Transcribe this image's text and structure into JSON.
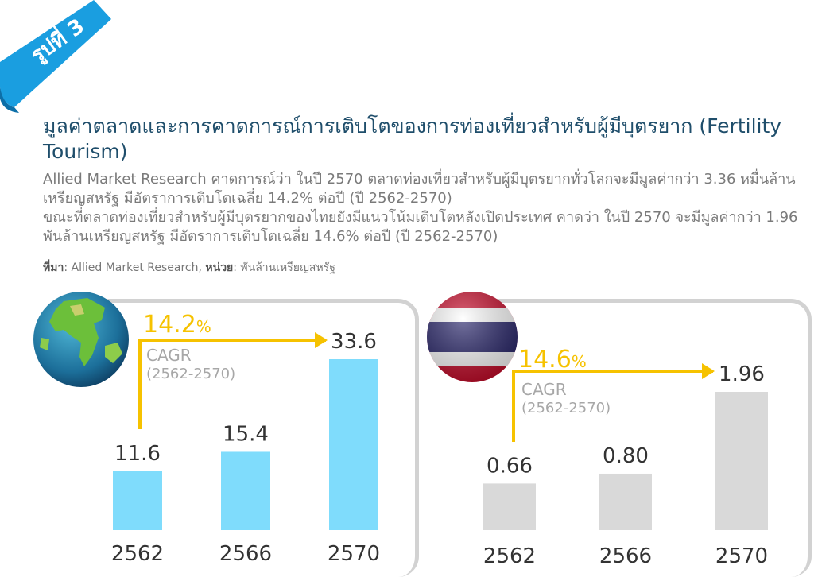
{
  "badge": {
    "label": "รูปที่ 3"
  },
  "title": "มูลค่าตลาดและการคาดการณ์การเติบโตของการท่องเที่ยวสำหรับผู้มีบุตรยาก (Fertility Tourism)",
  "description": [
    "Allied Market Research คาดการณ์ว่า ในปี 2570 ตลาดท่องเที่ยวสำหรับผู้มีบุตรยากทั่วโลกจะมีมูลค่ากว่า 3.36 หมื่นล้านเหรียญสหรัฐ มีอัตราการเติบโตเฉลี่ย 14.2% ต่อปี (ปี 2562-2570)",
    "ขณะที่ตลาดท่องเที่ยวสำหรับผู้มีบุตรยากของไทยยังมีแนวโน้มเติบโตหลังเปิดประเทศ คาดว่า ในปี 2570 จะมีมูลค่ากว่า 1.96 พันล้านเหรียญสหรัฐ มีอัตราการเติบโตเฉลี่ย 14.6% ต่อปี (ปี 2562-2570)"
  ],
  "source": {
    "source_label": "ที่มา",
    "source_value": ": Allied Market Research, ",
    "unit_label": "หน่วย",
    "unit_value": ": พันล้านเหรียญสหรัฐ"
  },
  "colors": {
    "world_bar": "#7fdcfc",
    "thai_bar": "#d9d9d9",
    "accent": "#f6c200",
    "title": "#1f4e6b",
    "ribbon": "#1a9ee0"
  },
  "chart_data": [
    {
      "type": "bar",
      "region": "world",
      "icon": "globe-icon",
      "categories": [
        "2562",
        "2566",
        "2570"
      ],
      "values": [
        11.6,
        15.4,
        33.6
      ],
      "value_labels": [
        "11.6",
        "15.4",
        "33.6"
      ],
      "cagr": {
        "value": "14.2",
        "unit": "%",
        "label": "CAGR",
        "period": "(2562-2570)"
      }
    },
    {
      "type": "bar",
      "region": "thailand",
      "icon": "thai-flag-icon",
      "categories": [
        "2562",
        "2566",
        "2570"
      ],
      "values": [
        0.66,
        0.8,
        1.96
      ],
      "value_labels": [
        "0.66",
        "0.80",
        "1.96"
      ],
      "cagr": {
        "value": "14.6",
        "unit": "%",
        "label": "CAGR",
        "period": "(2562-2570)"
      }
    }
  ]
}
